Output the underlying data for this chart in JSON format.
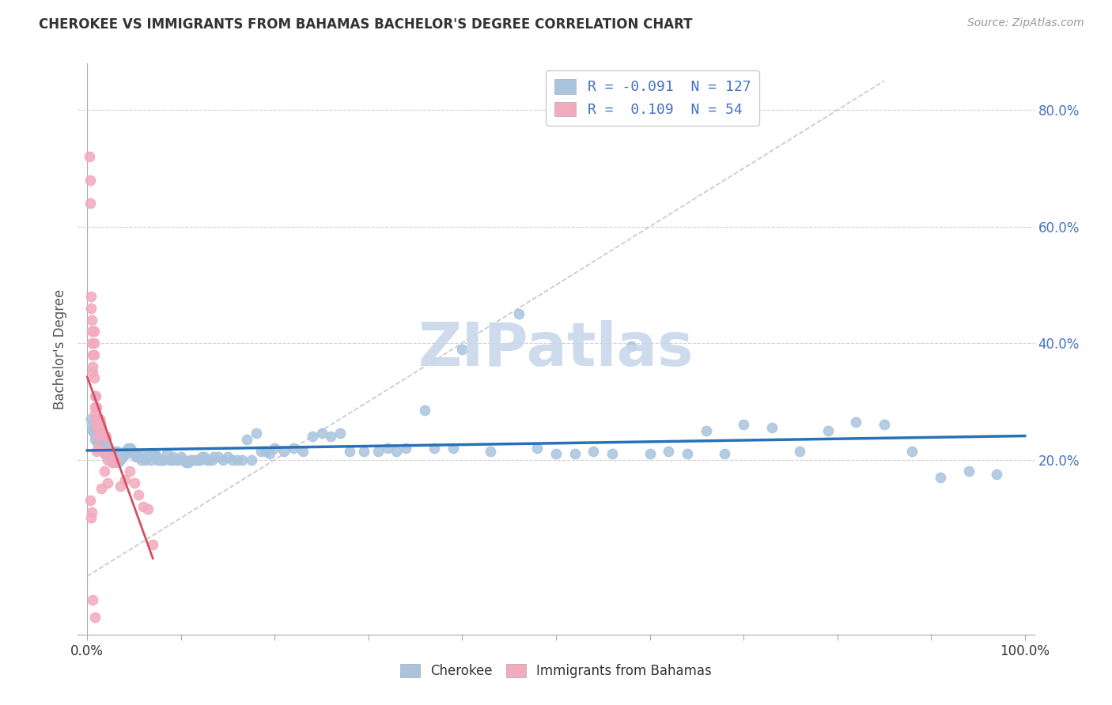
{
  "title": "CHEROKEE VS IMMIGRANTS FROM BAHAMAS BACHELOR'S DEGREE CORRELATION CHART",
  "source": "Source: ZipAtlas.com",
  "ylabel": "Bachelor's Degree",
  "xlim": [
    -0.01,
    1.01
  ],
  "ylim": [
    -0.1,
    0.88
  ],
  "cherokee_R": -0.091,
  "cherokee_N": 127,
  "bahamas_R": 0.109,
  "bahamas_N": 54,
  "cherokee_color": "#aac4de",
  "bahamas_color": "#f2aabe",
  "cherokee_line_color": "#2870b8",
  "bahamas_line_color": "#d45060",
  "watermark": "ZIPatlas",
  "watermark_color": "#c8d8ec",
  "legend_R_color": "#4472c4",
  "dot_size": 80,
  "cherokee_x": [
    0.004,
    0.005,
    0.006,
    0.007,
    0.008,
    0.009,
    0.01,
    0.01,
    0.011,
    0.012,
    0.013,
    0.014,
    0.015,
    0.016,
    0.017,
    0.018,
    0.018,
    0.019,
    0.02,
    0.021,
    0.022,
    0.023,
    0.024,
    0.025,
    0.026,
    0.027,
    0.028,
    0.03,
    0.032,
    0.033,
    0.034,
    0.035,
    0.038,
    0.04,
    0.042,
    0.044,
    0.046,
    0.048,
    0.05,
    0.052,
    0.055,
    0.058,
    0.06,
    0.062,
    0.065,
    0.068,
    0.07,
    0.072,
    0.074,
    0.075,
    0.078,
    0.08,
    0.082,
    0.085,
    0.088,
    0.09,
    0.092,
    0.095,
    0.098,
    0.1,
    0.103,
    0.105,
    0.108,
    0.11,
    0.112,
    0.115,
    0.118,
    0.12,
    0.122,
    0.125,
    0.128,
    0.13,
    0.133,
    0.135,
    0.14,
    0.145,
    0.15,
    0.155,
    0.16,
    0.165,
    0.17,
    0.175,
    0.18,
    0.185,
    0.19,
    0.195,
    0.2,
    0.21,
    0.22,
    0.23,
    0.24,
    0.25,
    0.26,
    0.27,
    0.28,
    0.295,
    0.31,
    0.32,
    0.33,
    0.34,
    0.36,
    0.37,
    0.39,
    0.4,
    0.43,
    0.46,
    0.48,
    0.5,
    0.52,
    0.54,
    0.56,
    0.58,
    0.6,
    0.62,
    0.64,
    0.66,
    0.68,
    0.7,
    0.73,
    0.76,
    0.79,
    0.82,
    0.85,
    0.88,
    0.91,
    0.94,
    0.97
  ],
  "cherokee_y": [
    0.27,
    0.26,
    0.25,
    0.245,
    0.235,
    0.25,
    0.255,
    0.24,
    0.23,
    0.235,
    0.24,
    0.245,
    0.245,
    0.24,
    0.225,
    0.235,
    0.21,
    0.22,
    0.235,
    0.215,
    0.22,
    0.205,
    0.21,
    0.215,
    0.215,
    0.195,
    0.215,
    0.2,
    0.215,
    0.195,
    0.2,
    0.2,
    0.205,
    0.215,
    0.21,
    0.22,
    0.22,
    0.215,
    0.21,
    0.205,
    0.205,
    0.2,
    0.21,
    0.2,
    0.205,
    0.2,
    0.21,
    0.21,
    0.205,
    0.2,
    0.2,
    0.2,
    0.2,
    0.21,
    0.2,
    0.2,
    0.205,
    0.2,
    0.2,
    0.205,
    0.2,
    0.195,
    0.195,
    0.2,
    0.2,
    0.2,
    0.2,
    0.2,
    0.205,
    0.205,
    0.2,
    0.2,
    0.2,
    0.205,
    0.205,
    0.2,
    0.205,
    0.2,
    0.2,
    0.2,
    0.235,
    0.2,
    0.245,
    0.215,
    0.215,
    0.21,
    0.22,
    0.215,
    0.22,
    0.215,
    0.24,
    0.245,
    0.24,
    0.245,
    0.215,
    0.215,
    0.215,
    0.22,
    0.215,
    0.22,
    0.285,
    0.22,
    0.22,
    0.39,
    0.215,
    0.45,
    0.22,
    0.21,
    0.21,
    0.215,
    0.21,
    0.395,
    0.21,
    0.215,
    0.21,
    0.25,
    0.21,
    0.26,
    0.255,
    0.215,
    0.25,
    0.265,
    0.26,
    0.215,
    0.17,
    0.18,
    0.175
  ],
  "bahamas_x": [
    0.002,
    0.003,
    0.003,
    0.004,
    0.004,
    0.005,
    0.005,
    0.005,
    0.006,
    0.006,
    0.006,
    0.007,
    0.007,
    0.007,
    0.007,
    0.008,
    0.008,
    0.008,
    0.009,
    0.009,
    0.01,
    0.01,
    0.01,
    0.011,
    0.011,
    0.012,
    0.013,
    0.014,
    0.015,
    0.016,
    0.018,
    0.02,
    0.022,
    0.025,
    0.028,
    0.03,
    0.035,
    0.04,
    0.045,
    0.05,
    0.055,
    0.06,
    0.065,
    0.07,
    0.01,
    0.012,
    0.015,
    0.018,
    0.022,
    0.003,
    0.004,
    0.005,
    0.006,
    0.008
  ],
  "bahamas_y": [
    0.72,
    0.68,
    0.64,
    0.48,
    0.46,
    0.44,
    0.42,
    0.4,
    0.35,
    0.38,
    0.36,
    0.34,
    0.42,
    0.4,
    0.38,
    0.29,
    0.31,
    0.28,
    0.31,
    0.27,
    0.29,
    0.265,
    0.26,
    0.26,
    0.255,
    0.24,
    0.27,
    0.265,
    0.255,
    0.245,
    0.215,
    0.24,
    0.2,
    0.215,
    0.195,
    0.2,
    0.155,
    0.165,
    0.18,
    0.16,
    0.14,
    0.12,
    0.115,
    0.055,
    0.215,
    0.22,
    0.15,
    0.18,
    0.16,
    0.13,
    0.1,
    0.11,
    -0.04,
    -0.07
  ]
}
